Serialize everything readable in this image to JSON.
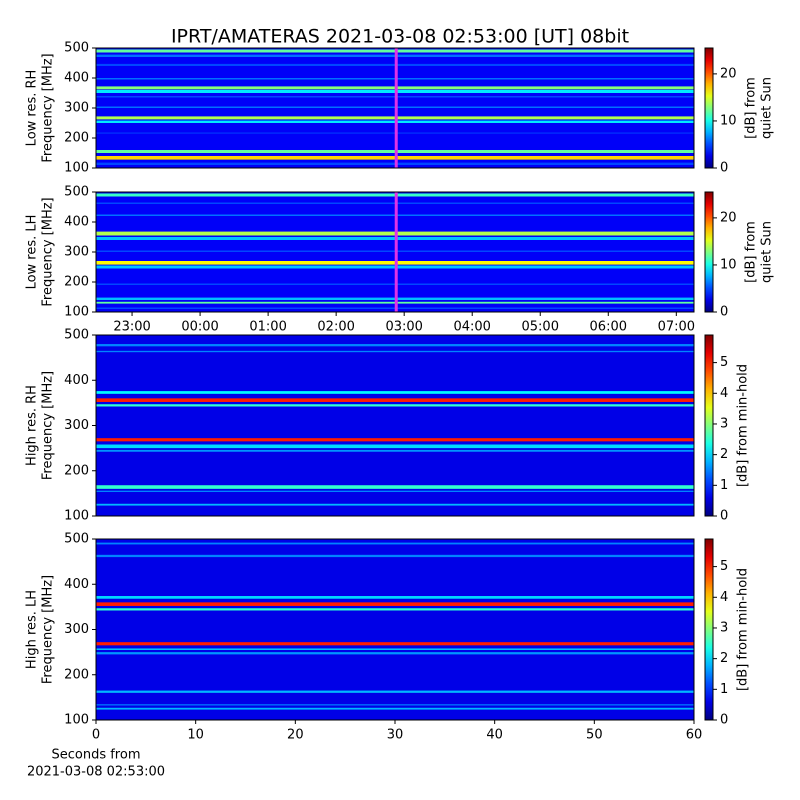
{
  "title": "IPRT/AMATERAS 2021-03-08 02:53:00 [UT]   08bit",
  "chart_data": [
    {
      "type": "heatmap",
      "ylabel": [
        "Low res. RH",
        "Frequency [MHz]"
      ],
      "clabel": [
        "[dB] from",
        "quiet Sun"
      ],
      "xlim": [
        -1.53,
        7.26
      ],
      "ylim": [
        100,
        500
      ],
      "yticks": [
        100,
        200,
        300,
        400,
        500
      ],
      "clim": [
        0,
        25.5
      ],
      "cticks": [
        0,
        10,
        20
      ],
      "cursor": 2.883,
      "cursor_color": "#e032e6",
      "background": 3,
      "bands": [
        {
          "low": 485,
          "high": 495,
          "value": 12
        },
        {
          "low": 470,
          "high": 478,
          "value": 6
        },
        {
          "low": 440,
          "high": 447,
          "value": 5
        },
        {
          "low": 395,
          "high": 400,
          "value": 6
        },
        {
          "low": 362,
          "high": 372,
          "value": 13
        },
        {
          "low": 350,
          "high": 360,
          "value": 9
        },
        {
          "low": 335,
          "high": 340,
          "value": 5
        },
        {
          "low": 300,
          "high": 305,
          "value": 6
        },
        {
          "low": 262,
          "high": 272,
          "value": 14
        },
        {
          "low": 250,
          "high": 258,
          "value": 9
        },
        {
          "low": 215,
          "high": 218,
          "value": 5
        },
        {
          "low": 150,
          "high": 160,
          "value": 12
        },
        {
          "low": 128,
          "high": 140,
          "value": 17
        },
        {
          "low": 110,
          "high": 118,
          "value": 5
        }
      ]
    },
    {
      "type": "heatmap",
      "ylabel": [
        "Low res. LH",
        "Frequency [MHz]"
      ],
      "clabel": [
        "[dB] from",
        "quiet Sun"
      ],
      "xlim": [
        -1.53,
        7.26
      ],
      "ylim": [
        100,
        500
      ],
      "yticks": [
        100,
        200,
        300,
        400,
        500
      ],
      "xticks": [
        {
          "value": -1,
          "label": "23:00"
        },
        {
          "value": 0,
          "label": "00:00"
        },
        {
          "value": 1,
          "label": "01:00"
        },
        {
          "value": 2,
          "label": "02:00"
        },
        {
          "value": 3,
          "label": "03:00"
        },
        {
          "value": 4,
          "label": "04:00"
        },
        {
          "value": 5,
          "label": "05:00"
        },
        {
          "value": 6,
          "label": "06:00"
        },
        {
          "value": 7,
          "label": "07:00"
        }
      ],
      "clim": [
        0,
        25.5
      ],
      "cticks": [
        0,
        10,
        20
      ],
      "cursor": 2.883,
      "cursor_color": "#e032e6",
      "background": 3,
      "bands": [
        {
          "low": 485,
          "high": 495,
          "value": 11
        },
        {
          "low": 460,
          "high": 465,
          "value": 5
        },
        {
          "low": 420,
          "high": 425,
          "value": 6
        },
        {
          "low": 355,
          "high": 368,
          "value": 14
        },
        {
          "low": 340,
          "high": 350,
          "value": 8
        },
        {
          "low": 300,
          "high": 305,
          "value": 5
        },
        {
          "low": 258,
          "high": 270,
          "value": 16
        },
        {
          "low": 245,
          "high": 255,
          "value": 8
        },
        {
          "low": 190,
          "high": 195,
          "value": 5
        },
        {
          "low": 140,
          "high": 148,
          "value": 8
        },
        {
          "low": 128,
          "high": 134,
          "value": 12
        },
        {
          "low": 110,
          "high": 115,
          "value": 5
        }
      ]
    },
    {
      "type": "heatmap",
      "ylabel": [
        "High res. RH",
        "Frequency [MHz]"
      ],
      "clabel": [
        "[dB] from min-hold"
      ],
      "xlim": [
        0,
        60
      ],
      "ylim": [
        100,
        500
      ],
      "yticks": [
        100,
        200,
        300,
        400,
        500
      ],
      "clim": [
        0,
        5.9
      ],
      "cticks": [
        0,
        1,
        2,
        3,
        4,
        5
      ],
      "background": 0.6,
      "bands": [
        {
          "low": 475,
          "high": 480,
          "value": 1.5
        },
        {
          "low": 462,
          "high": 465,
          "value": 1.5
        },
        {
          "low": 370,
          "high": 376,
          "value": 2.2
        },
        {
          "low": 352,
          "high": 360,
          "value": 5
        },
        {
          "low": 342,
          "high": 347,
          "value": 2.5
        },
        {
          "low": 265,
          "high": 272,
          "value": 5
        },
        {
          "low": 250,
          "high": 258,
          "value": 2
        },
        {
          "low": 242,
          "high": 246,
          "value": 1.6
        },
        {
          "low": 160,
          "high": 168,
          "value": 2.5
        },
        {
          "low": 153,
          "high": 156,
          "value": 1.5
        },
        {
          "low": 123,
          "high": 127,
          "value": 1.8
        }
      ]
    },
    {
      "type": "heatmap",
      "ylabel": [
        "High res. LH",
        "Frequency [MHz]"
      ],
      "clabel": [
        "[dB] from min-hold"
      ],
      "xlim": [
        0,
        60
      ],
      "ylim": [
        100,
        500
      ],
      "yticks": [
        100,
        200,
        300,
        400,
        500
      ],
      "xticks": [
        0,
        10,
        20,
        30,
        40,
        50,
        60
      ],
      "xlabel": [
        "Seconds from",
        "2021-03-08 02:53:00"
      ],
      "clim": [
        0,
        5.9
      ],
      "cticks": [
        0,
        1,
        2,
        3,
        4,
        5
      ],
      "background": 0.6,
      "bands": [
        {
          "low": 488,
          "high": 492,
          "value": 1.5
        },
        {
          "low": 460,
          "high": 465,
          "value": 1.5
        },
        {
          "low": 368,
          "high": 374,
          "value": 2
        },
        {
          "low": 352,
          "high": 360,
          "value": 5
        },
        {
          "low": 342,
          "high": 347,
          "value": 2.5
        },
        {
          "low": 265,
          "high": 272,
          "value": 5
        },
        {
          "low": 255,
          "high": 258,
          "value": 2
        },
        {
          "low": 245,
          "high": 250,
          "value": 1.6
        },
        {
          "low": 160,
          "high": 165,
          "value": 1.8
        },
        {
          "low": 132,
          "high": 135,
          "value": 1.4
        },
        {
          "low": 123,
          "high": 127,
          "value": 1.8
        }
      ]
    }
  ]
}
